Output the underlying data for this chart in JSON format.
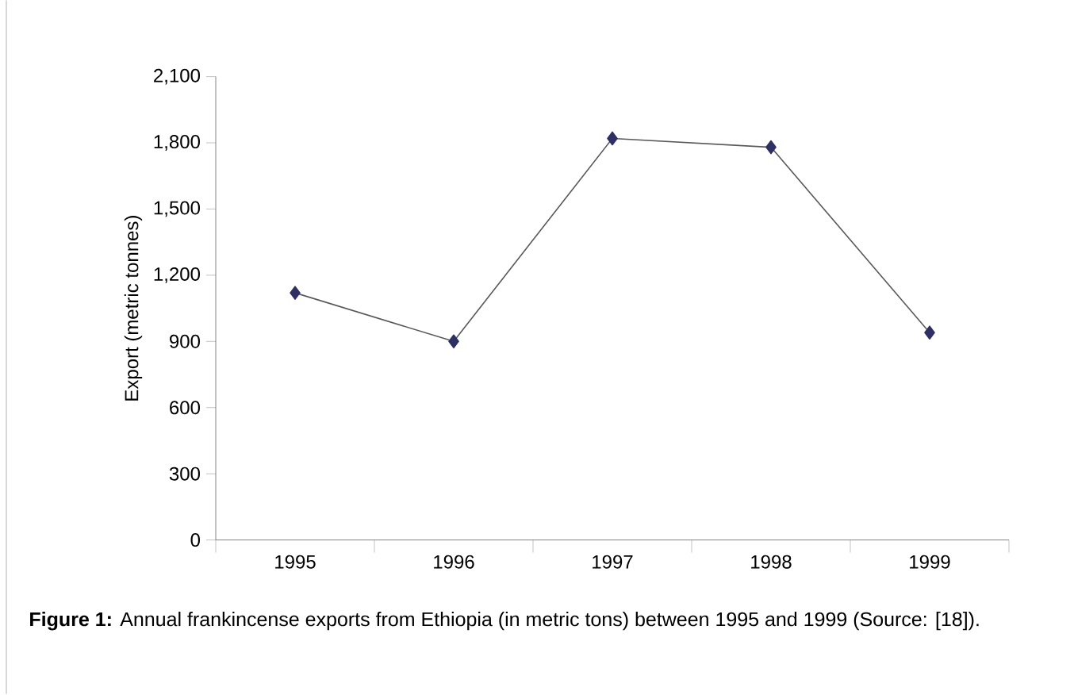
{
  "chart_data": {
    "type": "line",
    "ylabel": "Export (metric tonnes)",
    "annotations": [
      "**Figure 1:** Annual frankincense exports from Ethiopia (in metric tons) between 1995 and 1999 (Source: [18])."
    ],
    "categories": [
      "1995",
      "1996",
      "1997",
      "1998",
      "1999"
    ],
    "series": [
      {
        "color": "#2e3063",
        "values": [
          1120,
          900,
          1820,
          1780,
          940
        ]
      }
    ],
    "ylim": [
      0,
      2100
    ],
    "yticks": [
      {
        "value": 0,
        "label": "0"
      },
      {
        "value": 300,
        "label": "300"
      },
      {
        "value": 600,
        "label": "600"
      },
      {
        "value": 900,
        "label": "900"
      },
      {
        "value": 1200,
        "label": "1,200"
      },
      {
        "value": 1500,
        "label": "1,500"
      },
      {
        "value": 1800,
        "label": "1,800"
      },
      {
        "value": 2100,
        "label": "2,100"
      }
    ],
    "marker": "diamond"
  }
}
